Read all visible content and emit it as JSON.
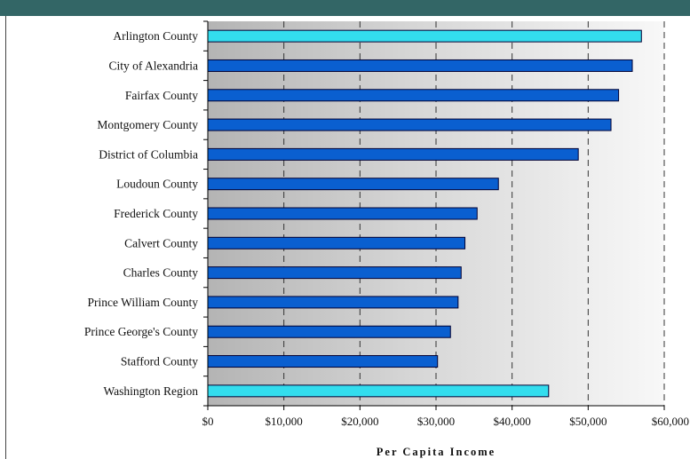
{
  "chart_data": {
    "type": "bar",
    "orientation": "horizontal",
    "title": "",
    "xlabel": "Per Capita Income",
    "ylabel": "",
    "xlim": [
      0,
      60000
    ],
    "xticks": [
      0,
      10000,
      20000,
      30000,
      40000,
      50000,
      60000
    ],
    "xtick_labels": [
      "$0",
      "$10,000",
      "$20,000",
      "$30,000",
      "$40,000",
      "$50,000",
      "$60,000"
    ],
    "gridlines": "vertical dashed",
    "categories": [
      "Arlington County",
      "City of Alexandria",
      "Fairfax County",
      "Montgomery County",
      "District of Columbia",
      "Loudoun County",
      "Frederick County",
      "Calvert County",
      "Charles County",
      "Prince William County",
      "Prince George's County",
      "Stafford County",
      "Washington Region"
    ],
    "values": [
      57000,
      55800,
      54000,
      53000,
      48700,
      38200,
      35400,
      33800,
      33300,
      32900,
      31900,
      30200,
      44800
    ],
    "highlighted": [
      "Arlington County",
      "Washington Region"
    ],
    "colors": {
      "bar": "#0a5fd0",
      "highlight": "#33ddee",
      "bar_outline": "#000033",
      "header": "#336666",
      "grid": "#333333"
    }
  }
}
